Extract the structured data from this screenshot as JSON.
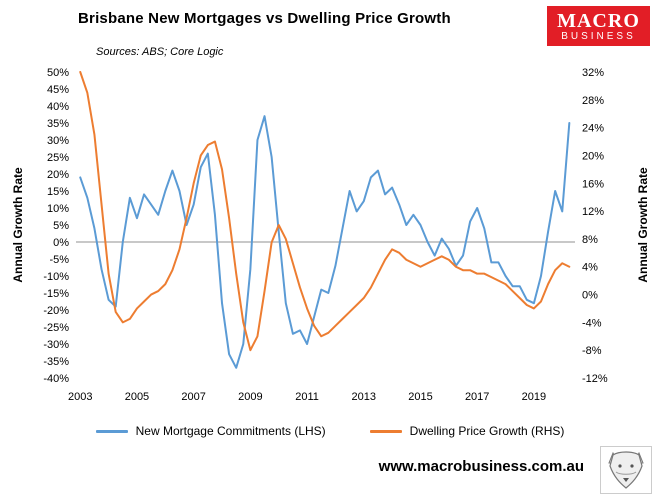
{
  "logo": {
    "line1": "MACRO",
    "line2": "BUSINESS",
    "bg_color": "#E21E26"
  },
  "footer": {
    "url": "www.macrobusiness.com.au"
  },
  "chart_data": {
    "type": "line",
    "title": "Brisbane New Mortgages vs Dwelling Price Growth",
    "sources": "Sources: ABS; Core Logic",
    "x_start": 2003.0,
    "x_step": 0.25,
    "x_range": [
      2002.85,
      2020.45
    ],
    "x_ticks": [
      2003,
      2005,
      2007,
      2009,
      2011,
      2013,
      2015,
      2017,
      2019
    ],
    "grid": "zero-line-only",
    "legend_position": "bottom",
    "zero_line_color": "#A6A6A6",
    "lhs": {
      "label": "Annual Growth Rate",
      "min": -40,
      "max": 50,
      "suffix": "%",
      "ticks": [
        50,
        45,
        40,
        35,
        30,
        25,
        20,
        15,
        10,
        5,
        0,
        -5,
        -10,
        -15,
        -20,
        -25,
        -30,
        -35,
        -40
      ]
    },
    "rhs": {
      "label": "Annual Growth Rate",
      "min": -12,
      "max": 32,
      "suffix": "%",
      "ticks": [
        32,
        28,
        24,
        20,
        16,
        12,
        8,
        4,
        0,
        -4,
        -8,
        -12
      ]
    },
    "series": [
      {
        "name": "New Mortgage Commitments (LHS)",
        "axis": "lhs",
        "color": "#5B9BD5",
        "values": [
          19,
          13,
          4,
          -8,
          -17,
          -19,
          0,
          13,
          7,
          14,
          11,
          8,
          15,
          21,
          15,
          5,
          11,
          22,
          26,
          8,
          -18,
          -33,
          -37,
          -30,
          -8,
          30,
          37,
          25,
          3,
          -18,
          -27,
          -26,
          -30,
          -22,
          -14,
          -15,
          -7,
          4,
          15,
          9,
          12,
          19,
          21,
          14,
          16,
          11,
          5,
          8,
          5,
          0,
          -4,
          1,
          -2,
          -7,
          -4,
          6,
          10,
          4,
          -6,
          -6,
          -10,
          -13,
          -13,
          -17,
          -18,
          -10,
          3,
          15,
          9,
          35
        ]
      },
      {
        "name": "Dwelling Price Growth (RHS)",
        "axis": "rhs",
        "color": "#ED7D31",
        "values": [
          32,
          29,
          23,
          13,
          3,
          -2.5,
          -4,
          -3.5,
          -2,
          -1,
          0,
          0.5,
          1.5,
          3.5,
          6.5,
          11,
          16,
          20,
          21.5,
          22,
          18,
          11,
          3,
          -4,
          -8,
          -6,
          0.5,
          7.5,
          10,
          8,
          4.5,
          1,
          -2,
          -4.5,
          -6,
          -5.5,
          -4.5,
          -3.5,
          -2.5,
          -1.5,
          -0.5,
          1,
          3,
          5,
          6.5,
          6,
          5,
          4.5,
          4,
          4.5,
          5,
          5.5,
          5,
          4,
          3.5,
          3.5,
          3,
          3,
          2.5,
          2,
          1.5,
          0.5,
          -0.5,
          -1.5,
          -2,
          -1,
          1.5,
          3.5,
          4.5,
          4
        ]
      }
    ]
  }
}
